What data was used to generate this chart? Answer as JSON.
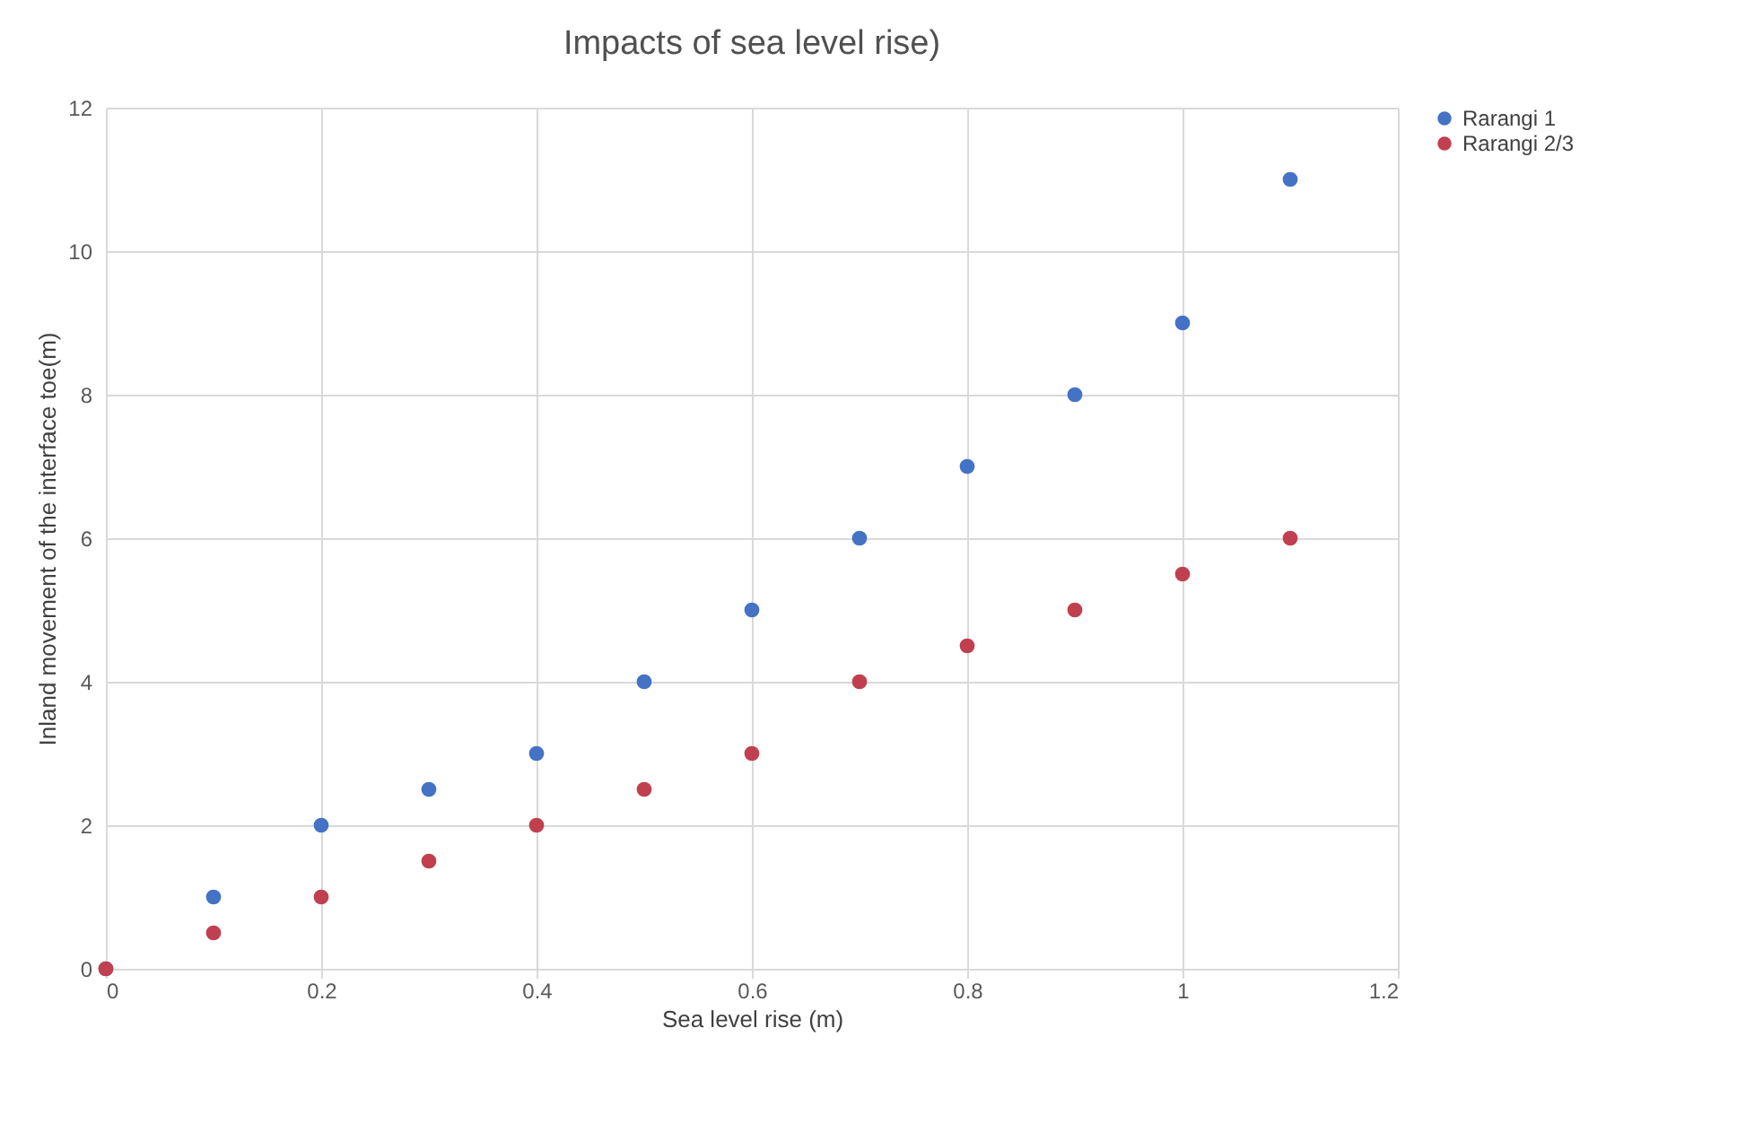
{
  "chart_data": {
    "type": "scatter",
    "title": "Impacts of sea level rise)",
    "xlabel": "Sea level rise (m)",
    "ylabel": "Inland movement of the interface toe(m)",
    "x": [
      0,
      0.1,
      0.2,
      0.3,
      0.4,
      0.5,
      0.6,
      0.7,
      0.8,
      0.9,
      1,
      1.1
    ],
    "series": [
      {
        "name": "Rarangi 1",
        "color": "#4472c4",
        "values": [
          0,
          1,
          2,
          2.5,
          3,
          4,
          5,
          6,
          7,
          8,
          9,
          11
        ]
      },
      {
        "name": "Rarangi 2/3",
        "color": "#c0404f",
        "values": [
          0,
          0.5,
          1,
          1.5,
          2,
          2.5,
          3,
          4,
          4.5,
          5,
          5.5,
          6
        ]
      }
    ],
    "xlim": [
      0,
      1.2
    ],
    "xticks": [
      0,
      0.2,
      0.4,
      0.6,
      0.8,
      1,
      1.2
    ],
    "ylim": [
      0,
      12
    ],
    "yticks": [
      0,
      2,
      4,
      6,
      8,
      10,
      12
    ],
    "grid": true,
    "legend": "right",
    "marker": "circle"
  }
}
